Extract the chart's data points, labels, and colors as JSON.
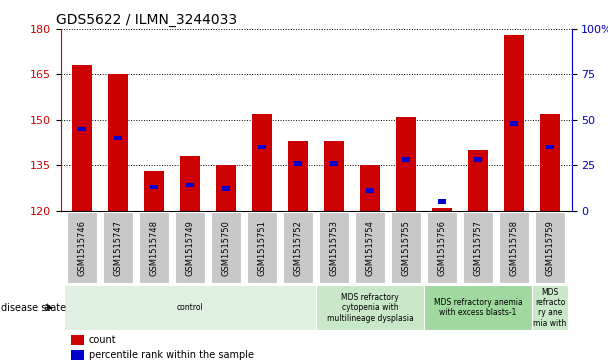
{
  "title": "GDS5622 / ILMN_3244033",
  "samples": [
    "GSM1515746",
    "GSM1515747",
    "GSM1515748",
    "GSM1515749",
    "GSM1515750",
    "GSM1515751",
    "GSM1515752",
    "GSM1515753",
    "GSM1515754",
    "GSM1515755",
    "GSM1515756",
    "GSM1515757",
    "GSM1515758",
    "GSM1515759"
  ],
  "counts": [
    168,
    165,
    133,
    138,
    135,
    152,
    143,
    143,
    135,
    151,
    121,
    140,
    178,
    152
  ],
  "percentile_ranks": [
    45,
    40,
    13,
    14,
    12,
    35,
    26,
    26,
    11,
    28,
    5,
    28,
    48,
    35
  ],
  "ylim_left": [
    120,
    180
  ],
  "ylim_right": [
    0,
    100
  ],
  "yticks_left": [
    120,
    135,
    150,
    165,
    180
  ],
  "yticks_right": [
    0,
    25,
    50,
    75,
    100
  ],
  "bar_color": "#CC0000",
  "marker_color": "#0000CC",
  "bar_width": 0.55,
  "disease_groups": [
    {
      "label": "control",
      "start": 0,
      "end": 7,
      "color": "#e0f0e0"
    },
    {
      "label": "MDS refractory\ncytopenia with\nmultilineage dysplasia",
      "start": 7,
      "end": 10,
      "color": "#c8e8c8"
    },
    {
      "label": "MDS refractory anemia\nwith excess blasts-1",
      "start": 10,
      "end": 13,
      "color": "#a0d8a0"
    },
    {
      "label": "MDS\nrefracto\nry ane\nmia with",
      "start": 13,
      "end": 14,
      "color": "#c8e8c8"
    }
  ],
  "disease_state_label": "disease state",
  "legend_count_label": "count",
  "legend_percentile_label": "percentile rank within the sample",
  "background_color": "#ffffff",
  "tick_area_color": "#c8c8c8"
}
